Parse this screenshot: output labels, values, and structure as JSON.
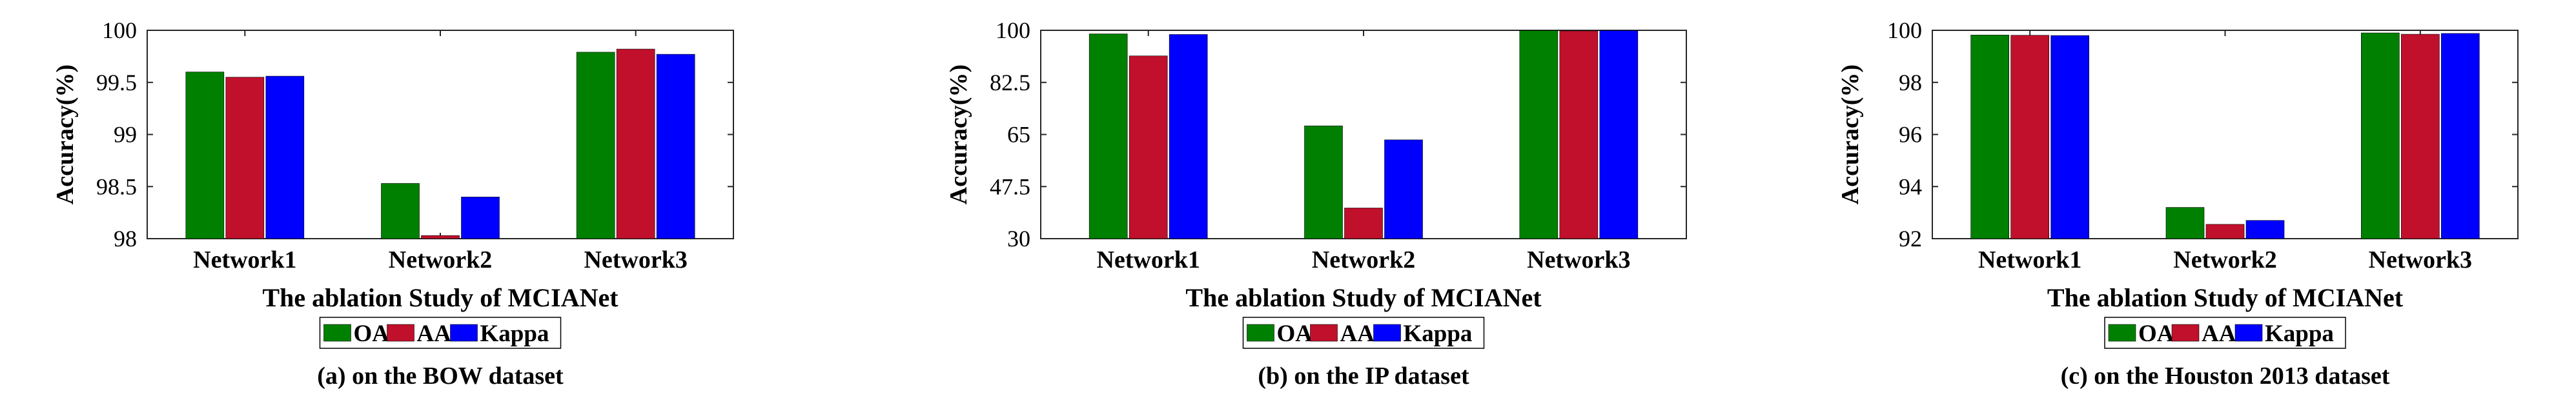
{
  "legend": {
    "labels": [
      "OA",
      "AA",
      "Kappa"
    ]
  },
  "colors": {
    "OA": "#008000",
    "AA": "#C0102C",
    "Kappa": "#0000FF",
    "axis": "#262626"
  },
  "chart_data": [
    {
      "type": "bar",
      "categories": [
        "Network1",
        "Network2",
        "Network3"
      ],
      "series": [
        {
          "name": "OA",
          "values": [
            99.6,
            98.53,
            99.79
          ]
        },
        {
          "name": "AA",
          "values": [
            99.55,
            98.03,
            99.82
          ]
        },
        {
          "name": "Kappa",
          "values": [
            99.56,
            98.4,
            99.77
          ]
        }
      ],
      "xlabel": "The ablation Study of MCIANet",
      "ylabel": "Accuracy(%)",
      "ylim": [
        98,
        100
      ],
      "yticks": [
        "98",
        "98.5",
        "99",
        "99.5",
        "100"
      ],
      "caption": "(a) on the BOW dataset",
      "legend_position": "bottom-center"
    },
    {
      "type": "bar",
      "categories": [
        "Network1",
        "Network2",
        "Network3"
      ],
      "series": [
        {
          "name": "OA",
          "values": [
            98.8,
            67.9,
            99.9
          ]
        },
        {
          "name": "AA",
          "values": [
            91.4,
            40.3,
            99.8
          ]
        },
        {
          "name": "Kappa",
          "values": [
            98.6,
            63.2,
            99.9
          ]
        }
      ],
      "xlabel": "The ablation Study of MCIANet",
      "ylabel": "Accuracy(%)",
      "ylim": [
        30,
        100
      ],
      "yticks": [
        "30",
        "47.5",
        "65",
        "82.5",
        "100"
      ],
      "caption": "(b) on the IP dataset",
      "legend_position": "bottom-center"
    },
    {
      "type": "bar",
      "categories": [
        "Network1",
        "Network2",
        "Network3"
      ],
      "series": [
        {
          "name": "OA",
          "values": [
            99.82,
            93.2,
            99.9
          ]
        },
        {
          "name": "AA",
          "values": [
            99.81,
            92.55,
            99.85
          ]
        },
        {
          "name": "Kappa",
          "values": [
            99.8,
            92.7,
            99.88
          ]
        }
      ],
      "xlabel": "The ablation Study of MCIANet",
      "ylabel": "Accuracy(%)",
      "ylim": [
        92,
        100
      ],
      "yticks": [
        "92",
        "94",
        "96",
        "98",
        "100"
      ],
      "caption": "(c) on the Houston 2013 dataset",
      "legend_position": "bottom-center"
    }
  ]
}
